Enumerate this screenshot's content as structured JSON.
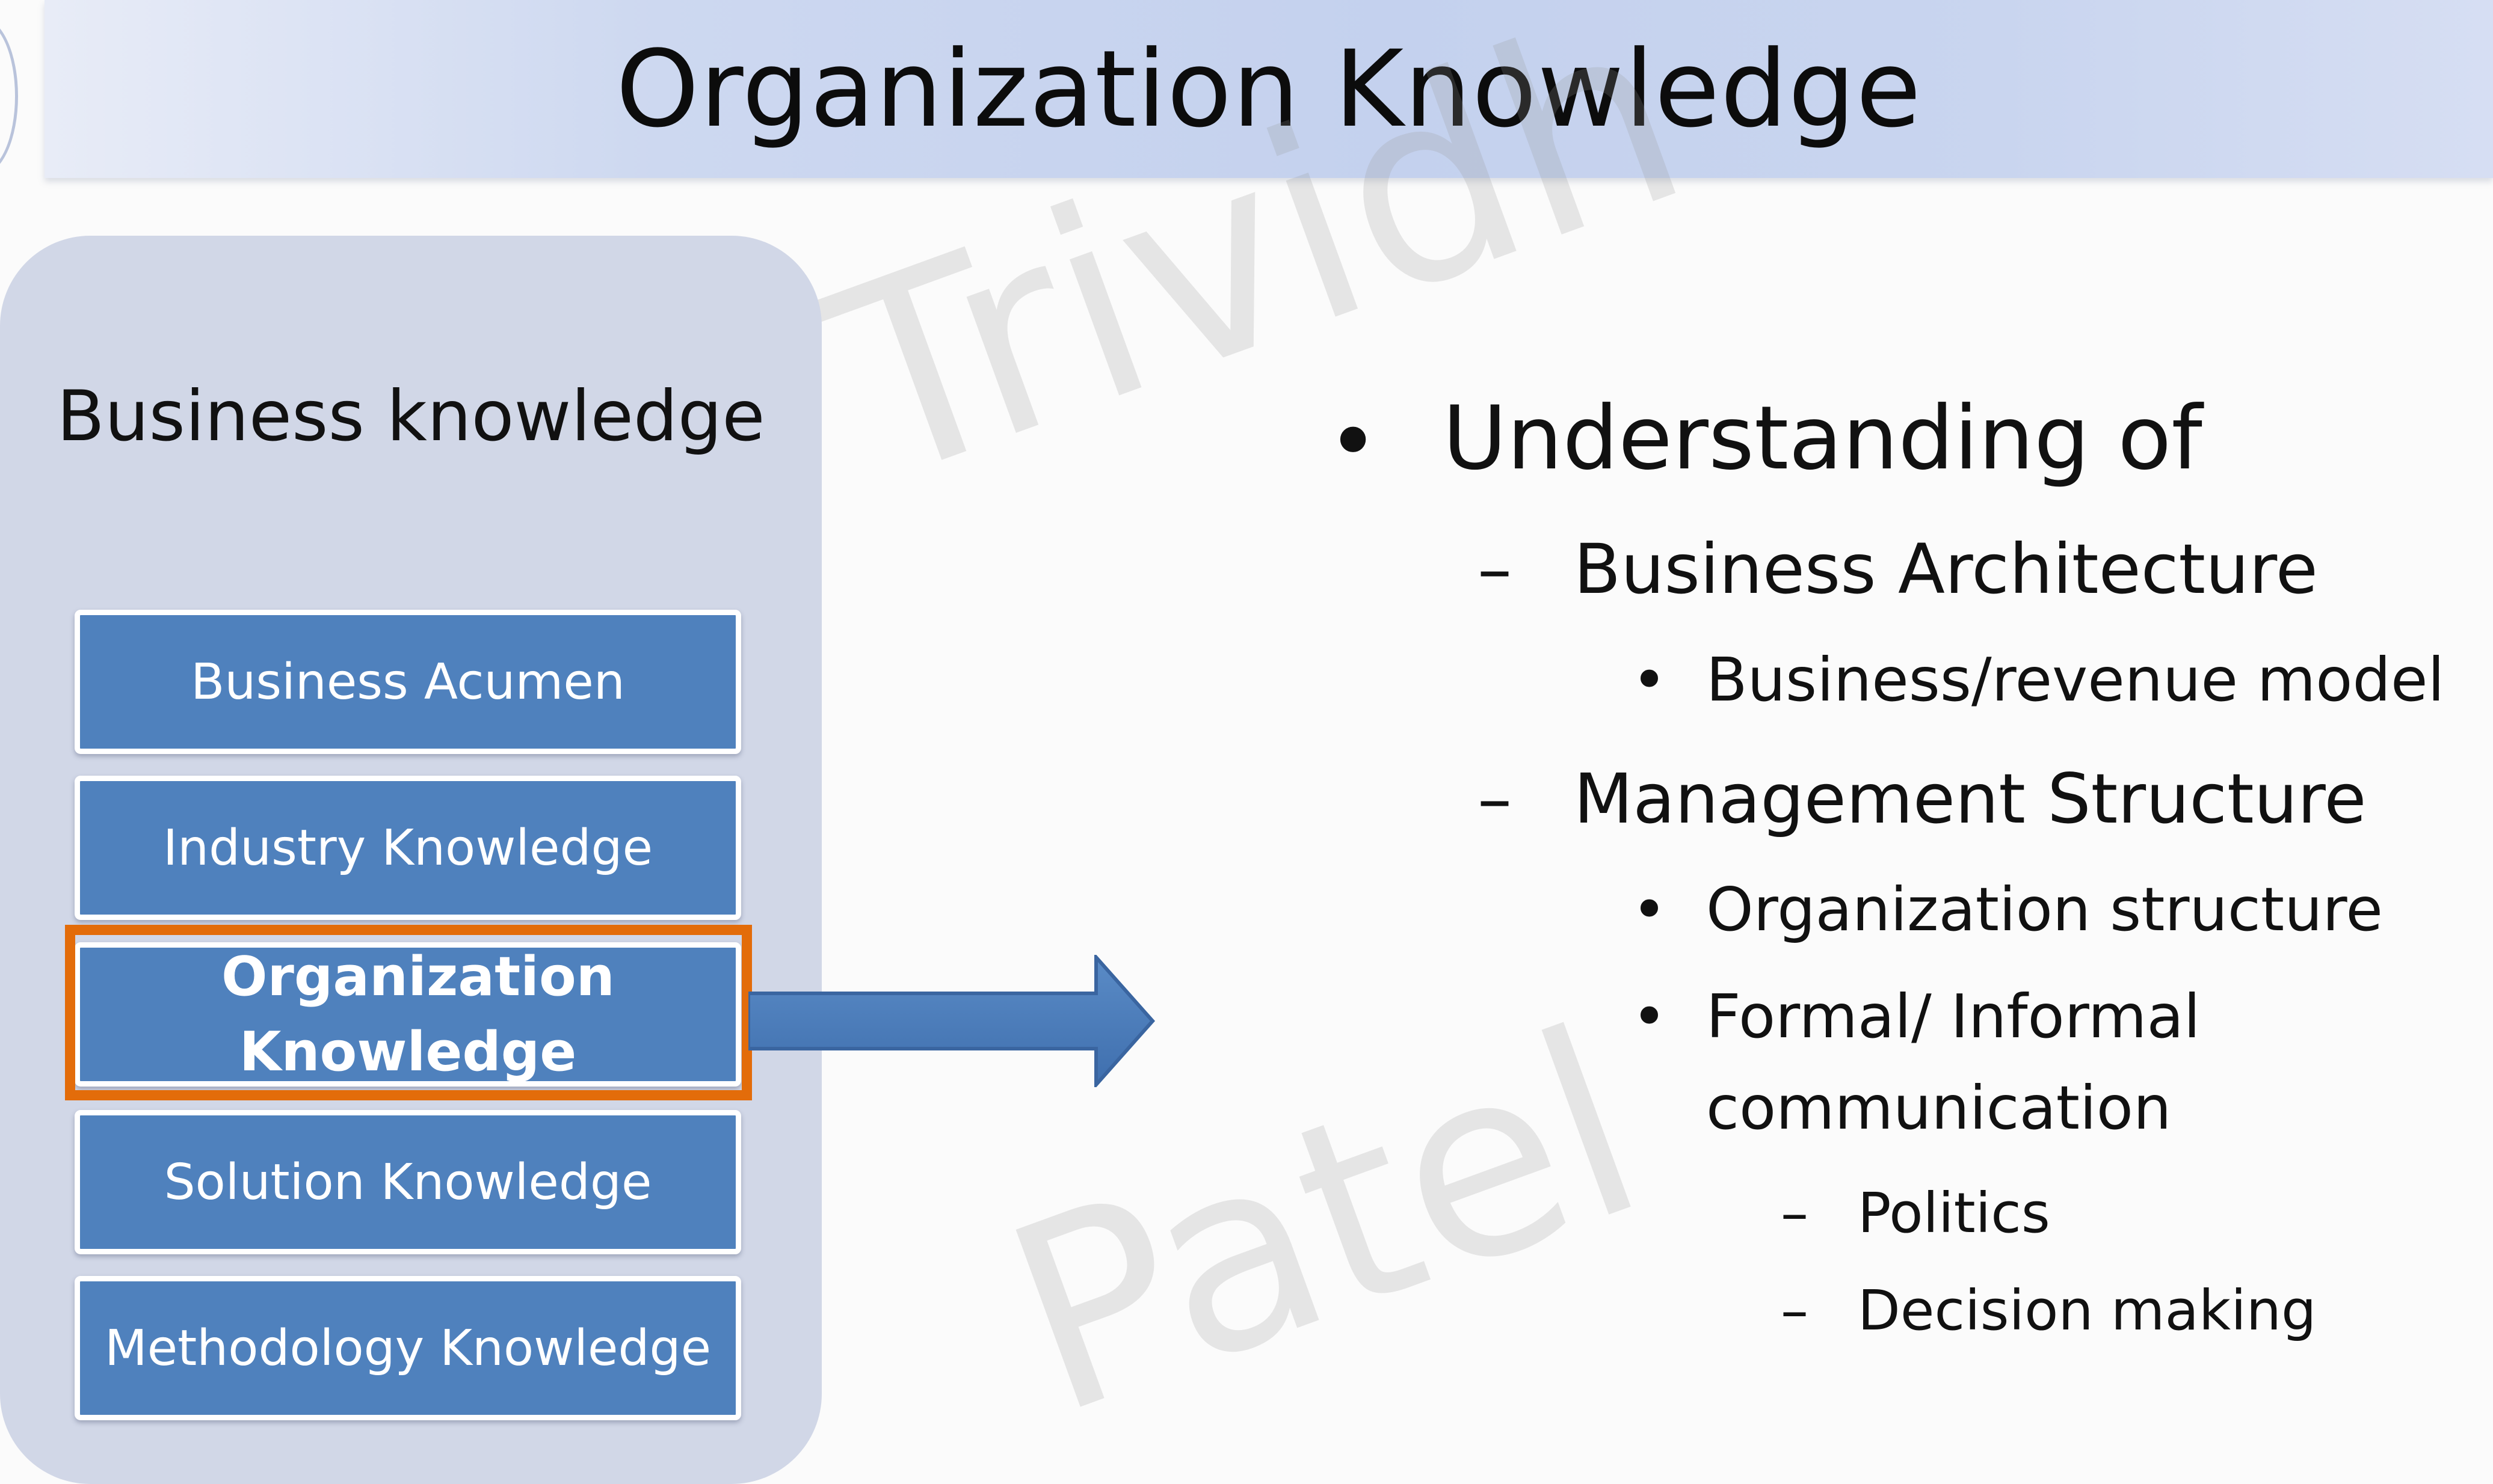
{
  "slide": {
    "title": "Organization Knowledge"
  },
  "side_panel": {
    "heading": "Business knowledge",
    "boxes": [
      {
        "label": "Business Acumen",
        "highlighted": false
      },
      {
        "label": "Industry Knowledge",
        "highlighted": false
      },
      {
        "label": "Organization Knowledge",
        "highlighted": true
      },
      {
        "label": "Solution Knowledge",
        "highlighted": false
      },
      {
        "label": "Methodology Knowledge",
        "highlighted": false
      }
    ]
  },
  "watermark": {
    "line1": "Trividh",
    "line2": "Patel"
  },
  "content": {
    "bullet_main": "Understanding of",
    "sub1": "Business Architecture",
    "sub1_item1": "Business/revenue model",
    "sub2": "Management Structure",
    "sub2_item1": "Organization structure",
    "sub2_item2_line1": "Formal/ Informal",
    "sub2_item2_line2": "communication",
    "sub2_item2_sub1": "Politics",
    "sub2_item2_sub2": "Decision making"
  },
  "marks": {
    "bullet": "•",
    "dash": "–"
  },
  "colors": {
    "box_fill": "#4f81bd",
    "highlight_border": "#e36c0a",
    "panel_fill": "#d1d7e7",
    "title_band": "#c4d1ee"
  }
}
